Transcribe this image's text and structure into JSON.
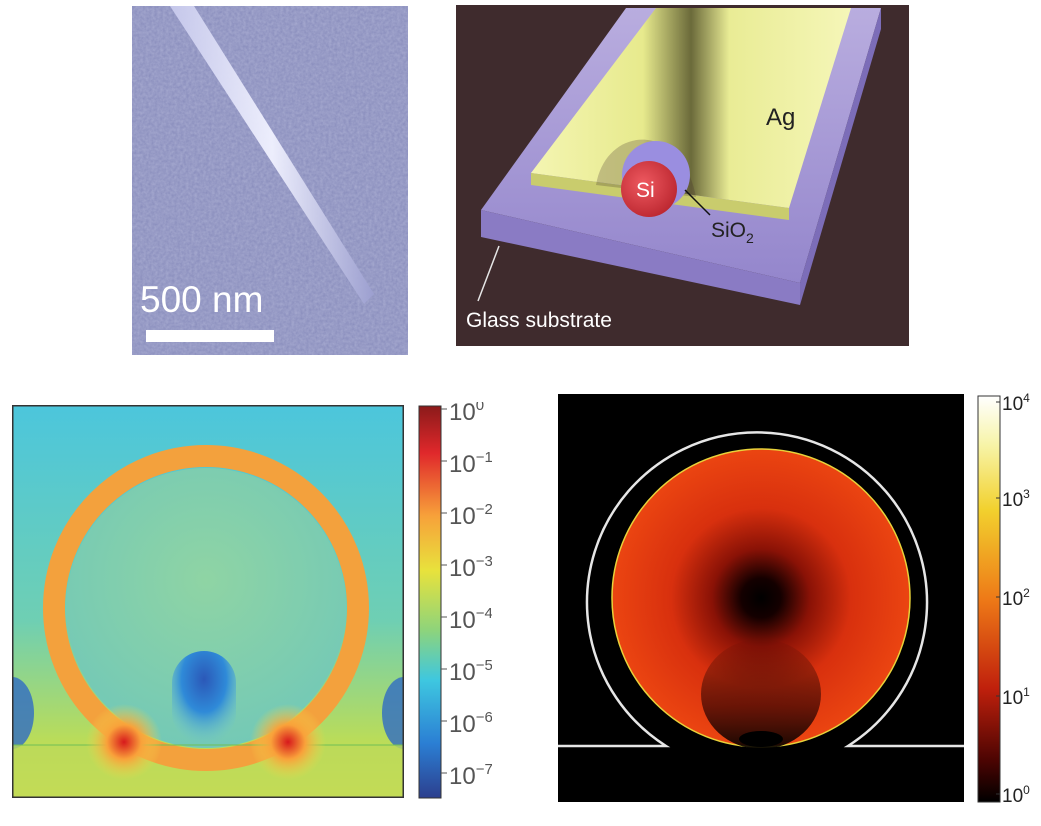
{
  "sem_image": {
    "scale_bar_label": "500 nm"
  },
  "schematic": {
    "label_ag": "Ag",
    "label_si": "Si",
    "label_sio2_base": "SiO",
    "label_sio2_sub": "2",
    "label_glass": "Glass substrate"
  },
  "field_map_colorbar": {
    "ticks": [
      {
        "base": "10",
        "exp": "0"
      },
      {
        "base": "10",
        "exp": "−1"
      },
      {
        "base": "10",
        "exp": "−2"
      },
      {
        "base": "10",
        "exp": "−3"
      },
      {
        "base": "10",
        "exp": "−4"
      },
      {
        "base": "10",
        "exp": "−5"
      },
      {
        "base": "10",
        "exp": "−6"
      },
      {
        "base": "10",
        "exp": "−7"
      }
    ]
  },
  "enhancement_map_colorbar": {
    "ticks": [
      {
        "base": "10",
        "exp": "4"
      },
      {
        "base": "10",
        "exp": "3"
      },
      {
        "base": "10",
        "exp": "2"
      },
      {
        "base": "10",
        "exp": "1"
      },
      {
        "base": "10",
        "exp": "0"
      }
    ]
  },
  "colors": {
    "background": "#ffffff",
    "sem_tint": "#8a8fbf",
    "schematic_bg": "#3f2b2d",
    "silver": "#eef19a",
    "glass": "#a89ad8",
    "silicon": "#d9363e"
  }
}
